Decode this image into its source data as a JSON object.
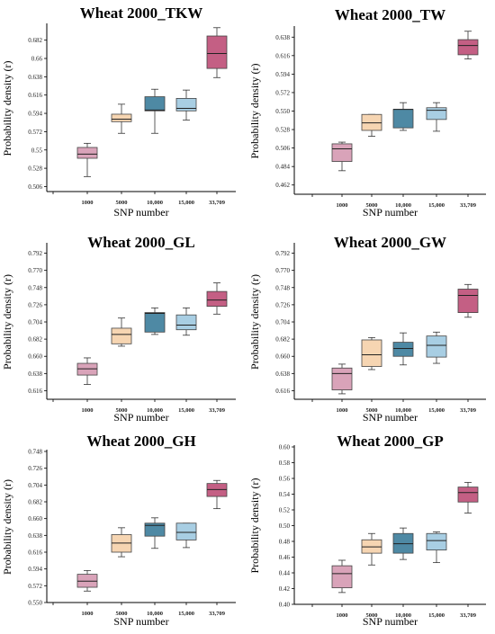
{
  "chart_data": [
    {
      "type": "box",
      "title": "Wheat 2000_TKW",
      "xlabel": "SNP number",
      "ylabel": "Probability density (r)",
      "categories": [
        "1000",
        "5000",
        "10,000",
        "15,000",
        "33,709"
      ],
      "ylim": [
        0.5,
        0.7
      ],
      "yticks": [
        "0.506",
        "0.528",
        "0.55",
        "0.572",
        "0.594",
        "0.616",
        "0.638",
        "0.66",
        "0.682"
      ],
      "boxes": [
        {
          "min": 0.518,
          "q1": 0.54,
          "median": 0.545,
          "q3": 0.553,
          "max": 0.558
        },
        {
          "min": 0.57,
          "q1": 0.584,
          "median": 0.587,
          "q3": 0.593,
          "max": 0.605
        },
        {
          "min": 0.57,
          "q1": 0.597,
          "median": 0.598,
          "q3": 0.614,
          "max": 0.623
        },
        {
          "min": 0.586,
          "q1": 0.597,
          "median": 0.6,
          "q3": 0.612,
          "max": 0.622
        },
        {
          "min": 0.637,
          "q1": 0.648,
          "median": 0.666,
          "q3": 0.687,
          "max": 0.697
        }
      ]
    },
    {
      "type": "box",
      "title": "Wheat 2000_TW",
      "xlabel": "SNP number",
      "ylabel": "Probability density (r)",
      "categories": [
        "1000",
        "5000",
        "10,000",
        "15,000",
        "33,709"
      ],
      "ylim": [
        0.451,
        0.649
      ],
      "yticks": [
        "0.462",
        "0.484",
        "0.506",
        "0.528",
        "0.550",
        "0.572",
        "0.594",
        "0.616",
        "0.638"
      ],
      "boxes": [
        {
          "min": 0.479,
          "q1": 0.49,
          "median": 0.505,
          "q3": 0.511,
          "max": 0.513
        },
        {
          "min": 0.52,
          "q1": 0.527,
          "median": 0.536,
          "q3": 0.546,
          "max": 0.546
        },
        {
          "min": 0.527,
          "q1": 0.53,
          "median": 0.552,
          "q3": 0.552,
          "max": 0.56
        },
        {
          "min": 0.526,
          "q1": 0.54,
          "median": 0.551,
          "q3": 0.554,
          "max": 0.56
        },
        {
          "min": 0.612,
          "q1": 0.617,
          "median": 0.628,
          "q3": 0.635,
          "max": 0.645
        }
      ]
    },
    {
      "type": "box",
      "title": "Wheat 2000_GL",
      "xlabel": "SNP number",
      "ylabel": "Probability density (r)",
      "categories": [
        "1000",
        "5000",
        "10,000",
        "15,000",
        "33,709"
      ],
      "ylim": [
        0.605,
        0.803
      ],
      "yticks": [
        "0.616",
        "0.638",
        "0.660",
        "0.682",
        "0.704",
        "0.726",
        "0.748",
        "0.770",
        "0.792"
      ],
      "boxes": [
        {
          "min": 0.624,
          "q1": 0.636,
          "median": 0.644,
          "q3": 0.651,
          "max": 0.658
        },
        {
          "min": 0.673,
          "q1": 0.676,
          "median": 0.688,
          "q3": 0.696,
          "max": 0.709
        },
        {
          "min": 0.688,
          "q1": 0.691,
          "median": 0.715,
          "q3": 0.716,
          "max": 0.722
        },
        {
          "min": 0.687,
          "q1": 0.694,
          "median": 0.7,
          "q3": 0.713,
          "max": 0.722
        },
        {
          "min": 0.714,
          "q1": 0.724,
          "median": 0.732,
          "q3": 0.743,
          "max": 0.754
        }
      ]
    },
    {
      "type": "box",
      "title": "Wheat 2000_GW",
      "xlabel": "SNP number",
      "ylabel": "Probability density (r)",
      "categories": [
        "1000",
        "5000",
        "10,000",
        "15,000",
        "33,709"
      ],
      "ylim": [
        0.605,
        0.803
      ],
      "yticks": [
        "0.616",
        "0.638",
        "0.660",
        "0.682",
        "0.704",
        "0.726",
        "0.748",
        "0.770",
        "0.792"
      ],
      "boxes": [
        {
          "min": 0.612,
          "q1": 0.617,
          "median": 0.638,
          "q3": 0.645,
          "max": 0.65
        },
        {
          "min": 0.643,
          "q1": 0.647,
          "median": 0.662,
          "q3": 0.681,
          "max": 0.684
        },
        {
          "min": 0.649,
          "q1": 0.66,
          "median": 0.67,
          "q3": 0.678,
          "max": 0.69
        },
        {
          "min": 0.651,
          "q1": 0.659,
          "median": 0.674,
          "q3": 0.686,
          "max": 0.691
        },
        {
          "min": 0.71,
          "q1": 0.716,
          "median": 0.738,
          "q3": 0.746,
          "max": 0.752
        }
      ]
    },
    {
      "type": "box",
      "title": "Wheat 2000_GH",
      "xlabel": "SNP number",
      "ylabel": "Probability density (r)",
      "categories": [
        "1000",
        "5000",
        "10,000",
        "15,000",
        "33,709"
      ],
      "ylim": [
        0.55,
        0.748
      ],
      "yticks": [
        "0.550",
        "0.572",
        "0.594",
        "0.616",
        "0.638",
        "0.660",
        "0.682",
        "0.704",
        "0.726",
        "0.748"
      ],
      "boxes": [
        {
          "min": 0.565,
          "q1": 0.57,
          "median": 0.578,
          "q3": 0.587,
          "max": 0.592
        },
        {
          "min": 0.61,
          "q1": 0.616,
          "median": 0.628,
          "q3": 0.639,
          "max": 0.648
        },
        {
          "min": 0.621,
          "q1": 0.637,
          "median": 0.651,
          "q3": 0.654,
          "max": 0.661
        },
        {
          "min": 0.622,
          "q1": 0.632,
          "median": 0.642,
          "q3": 0.654,
          "max": 0.654
        },
        {
          "min": 0.673,
          "q1": 0.689,
          "median": 0.698,
          "q3": 0.706,
          "max": 0.71
        }
      ]
    },
    {
      "type": "box",
      "title": "Wheat 2000_GP",
      "xlabel": "SNP number",
      "ylabel": "Probability density (r)",
      "categories": [
        "1000",
        "5000",
        "10,000",
        "15,000",
        "33,709"
      ],
      "ylim": [
        0.4,
        0.6
      ],
      "yticks": [
        "0.40",
        "0.42",
        "0.44",
        "0.46",
        "0.48",
        "0.50",
        "0.52",
        "0.54",
        "0.56",
        "0.58",
        "0.60"
      ],
      "boxes": [
        {
          "min": 0.415,
          "q1": 0.421,
          "median": 0.439,
          "q3": 0.449,
          "max": 0.456
        },
        {
          "min": 0.45,
          "q1": 0.465,
          "median": 0.473,
          "q3": 0.482,
          "max": 0.49
        },
        {
          "min": 0.457,
          "q1": 0.465,
          "median": 0.477,
          "q3": 0.49,
          "max": 0.497
        },
        {
          "min": 0.453,
          "q1": 0.469,
          "median": 0.481,
          "q3": 0.49,
          "max": 0.492
        },
        {
          "min": 0.516,
          "q1": 0.53,
          "median": 0.542,
          "q3": 0.549,
          "max": 0.555
        }
      ]
    }
  ],
  "colors": [
    "#d9a3b9",
    "#f6d5b2",
    "#4e89a4",
    "#a8cee3",
    "#c45f84"
  ]
}
